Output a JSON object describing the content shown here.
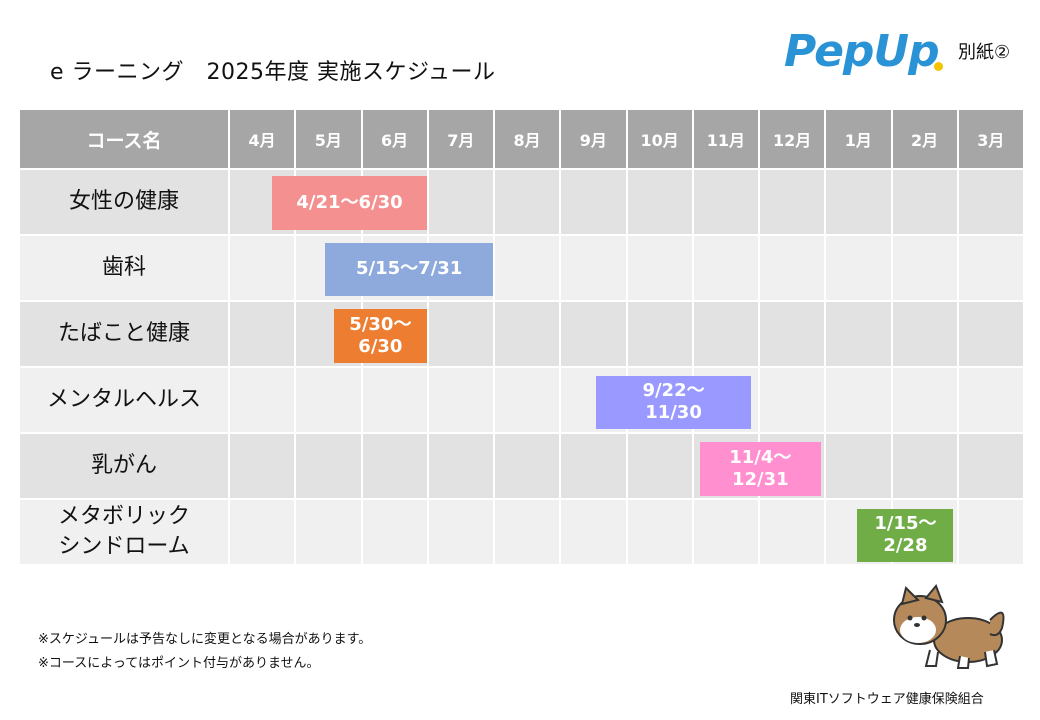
{
  "page": {
    "title": "e ラーニング　2025年度 実施スケジュール",
    "annex": "別紙②",
    "logo_text": "PepUp",
    "organization": "関東ITソフトウェア健康保険組合",
    "notes": [
      "※スケジュールは予告なしに変更となる場合があります。",
      "※コースによってはポイント付与がありません。"
    ]
  },
  "table": {
    "header_course": "コース名",
    "months": [
      "4月",
      "5月",
      "6月",
      "7月",
      "8月",
      "9月",
      "10月",
      "11月",
      "12月",
      "1月",
      "2月",
      "3月"
    ]
  },
  "courses": [
    {
      "name": "女性の健康",
      "period": "4/21～6/30",
      "start_month": 0,
      "start_frac": 0.67,
      "end_month": 2,
      "end_frac": 1.0,
      "color": "#f4908f"
    },
    {
      "name": "歯科",
      "period": "5/15～7/31",
      "start_month": 1,
      "start_frac": 0.47,
      "end_month": 3,
      "end_frac": 1.0,
      "color": "#8ea9db"
    },
    {
      "name": "たばこと健康",
      "period": "5/30～\n6/30",
      "start_month": 1,
      "start_frac": 0.6,
      "end_month": 2,
      "end_frac": 1.0,
      "color": "#ed7d31"
    },
    {
      "name": "メンタルヘルス",
      "period": "9/22～\n11/30",
      "start_month": 5,
      "start_frac": 0.55,
      "end_month": 7,
      "end_frac": 0.9,
      "color": "#9999ff"
    },
    {
      "name": "乳がん",
      "period": "11/4～\n12/31",
      "start_month": 7,
      "start_frac": 0.12,
      "end_month": 8,
      "end_frac": 0.95,
      "color": "#ff8fcf"
    },
    {
      "name": "メタボリック\nシンドローム",
      "period": "1/15～\n2/28",
      "start_month": 9,
      "start_frac": 0.5,
      "end_month": 10,
      "end_frac": 0.95,
      "color": "#70ad47"
    }
  ]
}
